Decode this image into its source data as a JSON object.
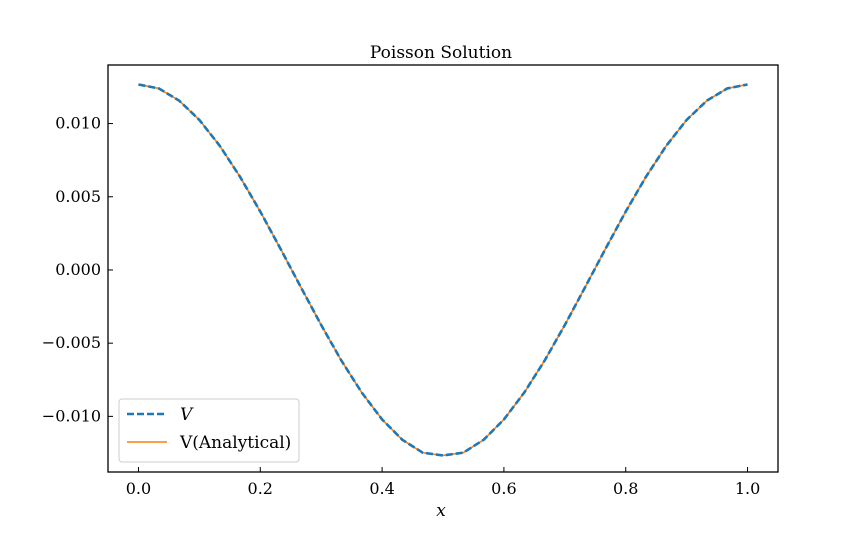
{
  "chart_data": {
    "type": "line",
    "title": "Poisson Solution",
    "xlabel": "x",
    "ylabel": "",
    "xlim": [
      -0.05,
      1.05
    ],
    "ylim": [
      -0.0138,
      0.014
    ],
    "xticks": [
      0.0,
      0.2,
      0.4,
      0.6,
      0.8,
      1.0
    ],
    "xtick_labels": [
      "0.0",
      "0.2",
      "0.4",
      "0.6",
      "0.8",
      "1.0"
    ],
    "yticks": [
      0.01,
      0.005,
      0.0,
      -0.005,
      -0.01
    ],
    "ytick_labels": [
      "0.010",
      "0.005",
      "0.000",
      "−0.005",
      "−0.010"
    ],
    "grid": false,
    "legend_position": "lower-left",
    "x": [
      0.0,
      0.0333,
      0.0667,
      0.1,
      0.1333,
      0.1667,
      0.2,
      0.2333,
      0.2667,
      0.3,
      0.3333,
      0.3667,
      0.4,
      0.4333,
      0.4667,
      0.5,
      0.5333,
      0.5667,
      0.6,
      0.6333,
      0.6667,
      0.7,
      0.7333,
      0.7667,
      0.8,
      0.8333,
      0.8667,
      0.9,
      0.9333,
      0.9667,
      1.0
    ],
    "series": [
      {
        "name": "V",
        "style": "dashed",
        "color": "#1f77b4",
        "values": [
          0.01267,
          0.0124,
          0.01157,
          0.01025,
          0.00849,
          0.00637,
          0.00399,
          0.00144,
          -0.00118,
          -0.00376,
          -0.0062,
          -0.00838,
          -0.01021,
          -0.0116,
          -0.01248,
          -0.01267,
          -0.01248,
          -0.0116,
          -0.01021,
          -0.00838,
          -0.0062,
          -0.00376,
          -0.00118,
          0.00144,
          0.00399,
          0.00637,
          0.00849,
          0.01025,
          0.01157,
          0.0124,
          0.01267
        ]
      },
      {
        "name": "V(Analytical)",
        "style": "solid",
        "color": "#ff7f0e",
        "values": [
          0.01267,
          0.0124,
          0.01157,
          0.01025,
          0.00849,
          0.00637,
          0.00399,
          0.00144,
          -0.00118,
          -0.00376,
          -0.0062,
          -0.00838,
          -0.01021,
          -0.0116,
          -0.01248,
          -0.01267,
          -0.01248,
          -0.0116,
          -0.01021,
          -0.00838,
          -0.0062,
          -0.00376,
          -0.00118,
          0.00144,
          0.00399,
          0.00637,
          0.00849,
          0.01025,
          0.01157,
          0.0124,
          0.01267
        ]
      }
    ]
  }
}
